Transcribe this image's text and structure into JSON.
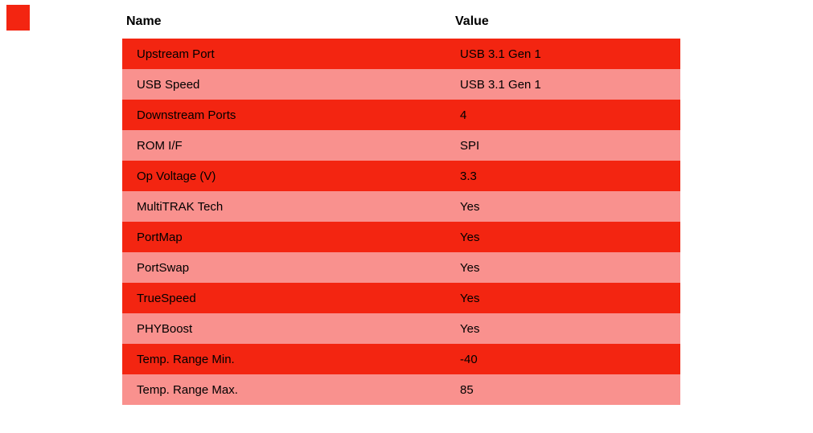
{
  "marker": {
    "color": "#f32511"
  },
  "table": {
    "columns": [
      "Name",
      "Value"
    ],
    "colors": {
      "odd_row": "#f32511",
      "even_row": "#f9918e",
      "text": "#000000",
      "header_text": "#000000"
    },
    "rows": [
      {
        "name": "Upstream Port",
        "value": "USB 3.1 Gen 1"
      },
      {
        "name": "USB Speed",
        "value": "USB 3.1 Gen 1"
      },
      {
        "name": "Downstream Ports",
        "value": "4"
      },
      {
        "name": "ROM I/F",
        "value": "SPI"
      },
      {
        "name": "Op Voltage (V)",
        "value": "3.3"
      },
      {
        "name": "MultiTRAK Tech",
        "value": "Yes"
      },
      {
        "name": "PortMap",
        "value": "Yes"
      },
      {
        "name": "PortSwap",
        "value": "Yes"
      },
      {
        "name": "TrueSpeed",
        "value": "Yes"
      },
      {
        "name": "PHYBoost",
        "value": "Yes"
      },
      {
        "name": "Temp. Range Min.",
        "value": "-40"
      },
      {
        "name": "Temp. Range Max.",
        "value": "85"
      }
    ]
  }
}
